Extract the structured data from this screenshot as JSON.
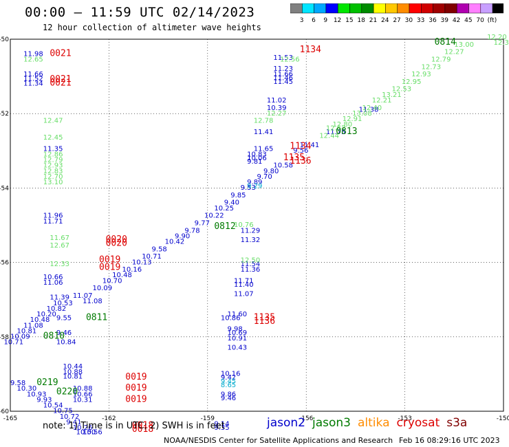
{
  "header": {
    "title": "00:00 – 11:59 UTC 02/14/2023",
    "subtitle": "12 hour collection of altimeter wave heights"
  },
  "colorbar": {
    "colors": [
      "#808080",
      "#00e5ff",
      "#00a8ff",
      "#0000ff",
      "#00e600",
      "#00c000",
      "#008c00",
      "#ffff00",
      "#ffc800",
      "#ff8c00",
      "#ff0000",
      "#d00000",
      "#a00000",
      "#800000",
      "#b000b0",
      "#ff80ff",
      "#c8a0ff",
      "#000000"
    ],
    "labels": [
      "3",
      "6",
      "9",
      "12",
      "15",
      "18",
      "21",
      "24",
      "27",
      "30",
      "33",
      "36",
      "39",
      "42",
      "45",
      "70",
      "(ft)"
    ]
  },
  "notes": {
    "note_text": "note:  1) Time is in UTC;  2) SWH is in feet",
    "credit": "NOAA/NESDIS Center for Satellite Applications and Research",
    "timestamp": "Feb 16 08:29:16 UTC 2023"
  },
  "legend": [
    {
      "name": "jason2",
      "color": "#0000cc"
    },
    {
      "name": "jason3",
      "color": "#007a00"
    },
    {
      "name": "altika",
      "color": "#ff8c00"
    },
    {
      "name": "cryosat",
      "color": "#dd0000"
    },
    {
      "name": "s3a",
      "color": "#800000"
    }
  ],
  "chart_data": {
    "type": "scatter",
    "title": "00:00 – 11:59 UTC 02/14/2023",
    "xlim": [
      -165,
      -150
    ],
    "ylim": [
      -60,
      -50
    ],
    "xticks": [
      "-165",
      "-162",
      "-159",
      "-156",
      "-153",
      "-150"
    ],
    "yticks": [
      "-50",
      "-52",
      "-54",
      "-56",
      "-58",
      "-60"
    ],
    "grid": "dotted",
    "colors": {
      "c12": "#0000cc",
      "c13": "#66dd66",
      "c14": "#00aacc",
      "time_red": "#dd0000",
      "time_green": "#007a00"
    },
    "series": [
      {
        "kind": "text",
        "color": "c12",
        "points": [
          [
            -164.6,
            -50.45,
            "11.98"
          ],
          [
            -164.6,
            -51.0,
            "11.66"
          ],
          [
            -164.6,
            -51.12,
            "11.52"
          ],
          [
            -164.6,
            -51.25,
            "11.34"
          ],
          [
            -164.0,
            -53.0,
            "11.35"
          ],
          [
            -164.0,
            -54.8,
            "11.96"
          ],
          [
            -164.0,
            -54.95,
            "11.71"
          ],
          [
            -164.0,
            -56.45,
            "10.66"
          ],
          [
            -164.0,
            -56.6,
            "11.06"
          ],
          [
            -163.8,
            -57.0,
            "11.39"
          ],
          [
            -163.7,
            -57.15,
            "10.53"
          ],
          [
            -163.9,
            -57.3,
            "10.82"
          ],
          [
            -164.2,
            -57.45,
            "10.20"
          ],
          [
            -164.4,
            -57.6,
            "10.48"
          ],
          [
            -164.6,
            -57.75,
            "11.08"
          ],
          [
            -164.8,
            -57.9,
            "10.81"
          ],
          [
            -165.0,
            -58.05,
            "10.09"
          ],
          [
            -165.2,
            -58.2,
            "10.71"
          ],
          [
            -163.6,
            -57.55,
            "9.55"
          ],
          [
            -163.6,
            -57.95,
            "9.46"
          ],
          [
            -163.6,
            -58.2,
            "10.84"
          ],
          [
            -163.4,
            -58.85,
            "10.44"
          ],
          [
            -163.4,
            -59.0,
            "10.88"
          ],
          [
            -163.4,
            -59.12,
            "10.81"
          ],
          [
            -165.0,
            -59.3,
            "9.58"
          ],
          [
            -164.8,
            -59.45,
            "10.30"
          ],
          [
            -164.5,
            -59.6,
            "10.93"
          ],
          [
            -164.2,
            -59.75,
            "9.93"
          ],
          [
            -164.0,
            -59.9,
            "10.54"
          ],
          [
            -163.7,
            -60.05,
            "10.75"
          ],
          [
            -163.5,
            -60.2,
            "10.72"
          ],
          [
            -163.3,
            -60.35,
            "9.41"
          ],
          [
            -163.1,
            -60.5,
            "10.26"
          ],
          [
            -163.0,
            -60.62,
            "10.50"
          ],
          [
            -162.8,
            -60.62,
            "10.56"
          ],
          [
            -163.1,
            -59.45,
            "10.88"
          ],
          [
            -163.1,
            -59.6,
            "10.66"
          ],
          [
            -163.1,
            -59.75,
            "10.31"
          ],
          [
            -163.1,
            -56.95,
            "11.07"
          ],
          [
            -162.8,
            -57.1,
            "11.08"
          ],
          [
            -162.5,
            -56.75,
            "10.09"
          ],
          [
            -162.2,
            -56.55,
            "10.70"
          ],
          [
            -161.9,
            -56.4,
            "10.48"
          ],
          [
            -161.6,
            -56.25,
            "10.16"
          ],
          [
            -161.3,
            -56.05,
            "10.13"
          ],
          [
            -161.0,
            -55.9,
            "10.71"
          ],
          [
            -160.7,
            -55.7,
            "9.58"
          ],
          [
            -160.3,
            -55.5,
            "10.42"
          ],
          [
            -160.0,
            -55.35,
            "9.90"
          ],
          [
            -159.7,
            -55.2,
            "9.78"
          ],
          [
            -159.4,
            -55.0,
            "9.77"
          ],
          [
            -159.1,
            -54.8,
            "10.22"
          ],
          [
            -158.8,
            -54.6,
            "10.25"
          ],
          [
            -158.5,
            -54.45,
            "9.40"
          ],
          [
            -158.3,
            -54.25,
            "9.85"
          ],
          [
            -158.0,
            -54.05,
            "9.53"
          ],
          [
            -157.8,
            -53.9,
            "9.89"
          ],
          [
            -157.5,
            -53.75,
            "9.70"
          ],
          [
            -157.3,
            -53.6,
            "9.80"
          ],
          [
            -157.0,
            -53.45,
            "10.58"
          ],
          [
            -157.8,
            -53.35,
            "9.81"
          ],
          [
            -157.8,
            -53.15,
            "10.83"
          ],
          [
            -157.8,
            -53.25,
            "10.06"
          ],
          [
            -157.6,
            -53.0,
            "11.65"
          ],
          [
            -157.6,
            -52.55,
            "11.41"
          ],
          [
            -157.2,
            -51.9,
            "10.39"
          ],
          [
            -157.2,
            -51.7,
            "11.02"
          ],
          [
            -157.0,
            -51.2,
            "11.45"
          ],
          [
            -157.0,
            -51.1,
            "11.46"
          ],
          [
            -157.0,
            -51.0,
            "11.66"
          ],
          [
            -157.0,
            -50.85,
            "11.23"
          ],
          [
            -157.0,
            -50.55,
            "11.53"
          ],
          [
            -158.0,
            -55.2,
            "11.29"
          ],
          [
            -158.0,
            -55.45,
            "11.32"
          ],
          [
            -158.0,
            -56.25,
            "11.36"
          ],
          [
            -158.0,
            -56.1,
            "11.54"
          ],
          [
            -158.2,
            -56.65,
            "11.40"
          ],
          [
            -158.2,
            -56.55,
            "11.71"
          ],
          [
            -158.2,
            -56.9,
            "11.07"
          ],
          [
            -158.4,
            -58.1,
            "10.91"
          ],
          [
            -158.4,
            -58.35,
            "10.43"
          ],
          [
            -158.6,
            -57.55,
            "10.86"
          ],
          [
            -158.4,
            -57.45,
            "11.60"
          ],
          [
            -158.4,
            -57.95,
            "10.69"
          ],
          [
            -158.4,
            -57.85,
            "9.98"
          ],
          [
            -158.6,
            -59.05,
            "10.16"
          ],
          [
            -158.6,
            -59.15,
            "9.42"
          ],
          [
            -158.6,
            -59.6,
            "9.86"
          ],
          [
            -158.6,
            -59.7,
            "9.46"
          ],
          [
            -158.8,
            -60.4,
            "9.14"
          ],
          [
            -158.8,
            -60.5,
            "9.35"
          ],
          [
            -155.4,
            -52.55,
            "11.75"
          ],
          [
            -154.4,
            -51.95,
            "11.38"
          ],
          [
            -156.2,
            -52.9,
            "11.41"
          ],
          [
            -156.4,
            -53.05,
            "9.56"
          ]
        ]
      },
      {
        "kind": "text",
        "color": "c13",
        "points": [
          [
            -164.6,
            -50.6,
            "12.65"
          ],
          [
            -164.0,
            -52.25,
            "12.47"
          ],
          [
            -164.0,
            -52.7,
            "12.45"
          ],
          [
            -164.0,
            -53.15,
            "12.86"
          ],
          [
            -164.0,
            -53.3,
            "12.79"
          ],
          [
            -164.0,
            -53.45,
            "12.93"
          ],
          [
            -164.0,
            -53.6,
            "12.83"
          ],
          [
            -164.0,
            -53.75,
            "12.70"
          ],
          [
            -164.0,
            -53.9,
            "13.10"
          ],
          [
            -163.8,
            -55.4,
            "11.67"
          ],
          [
            -163.8,
            -55.6,
            "12.67"
          ],
          [
            -163.8,
            -56.1,
            "12.33"
          ],
          [
            -157.2,
            -52.05,
            "12.27"
          ],
          [
            -157.6,
            -52.25,
            "12.78"
          ],
          [
            -158.0,
            -56.0,
            "12.50"
          ],
          [
            -156.8,
            -50.6,
            "12.56"
          ],
          [
            -155.6,
            -52.65,
            "12.44"
          ],
          [
            -155.4,
            -52.45,
            "12.67"
          ],
          [
            -155.2,
            -52.35,
            "12.80"
          ],
          [
            -154.9,
            -52.2,
            "12.91"
          ],
          [
            -154.6,
            -52.05,
            "13.08"
          ],
          [
            -154.3,
            -51.9,
            "12.40"
          ],
          [
            -154.0,
            -51.7,
            "12.21"
          ],
          [
            -153.7,
            -51.55,
            "13.21"
          ],
          [
            -153.4,
            -51.4,
            "12.53"
          ],
          [
            -153.1,
            -51.2,
            "12.95"
          ],
          [
            -152.8,
            -51.0,
            "12.93"
          ],
          [
            -152.5,
            -50.8,
            "12.73"
          ],
          [
            -152.2,
            -50.6,
            "12.79"
          ],
          [
            -151.8,
            -50.4,
            "12.27"
          ],
          [
            -151.5,
            -50.2,
            "13.00"
          ],
          [
            -150.5,
            -50.0,
            "12.20"
          ],
          [
            -150.3,
            -50.15,
            "12.30"
          ],
          [
            -158.2,
            -55.05,
            "10.76"
          ]
        ]
      },
      {
        "kind": "text",
        "color": "c14",
        "points": [
          [
            -158.6,
            -59.25,
            "9.45"
          ],
          [
            -158.6,
            -59.35,
            "8.65"
          ],
          [
            -157.8,
            -54.0,
            "9.29"
          ]
        ]
      },
      {
        "kind": "time",
        "color": "time_red",
        "points": [
          [
            -163.8,
            -50.45,
            "0021"
          ],
          [
            -163.8,
            -51.15,
            "0021"
          ],
          [
            -163.8,
            -51.25,
            "0021"
          ],
          [
            -162.1,
            -55.45,
            "0020"
          ],
          [
            -162.1,
            -55.55,
            "0020"
          ],
          [
            -162.3,
            -56.0,
            "0019"
          ],
          [
            -162.3,
            -56.2,
            "0019"
          ],
          [
            -161.5,
            -59.15,
            "0019"
          ],
          [
            -161.5,
            -59.45,
            "0019"
          ],
          [
            -161.5,
            -59.75,
            "0019"
          ],
          [
            -161.3,
            -60.45,
            "0018"
          ],
          [
            -161.3,
            -60.55,
            "0018"
          ],
          [
            -156.2,
            -50.35,
            "1134"
          ],
          [
            -156.5,
            -52.95,
            "1134"
          ],
          [
            -156.7,
            -53.25,
            "1135"
          ],
          [
            -156.5,
            -53.35,
            "1136"
          ],
          [
            -157.6,
            -57.55,
            "1135"
          ],
          [
            -157.6,
            -57.65,
            "1136"
          ]
        ]
      },
      {
        "kind": "time",
        "color": "time_green",
        "points": [
          [
            -164.0,
            -58.05,
            "0810"
          ],
          [
            -162.7,
            -57.55,
            "0811"
          ],
          [
            -158.8,
            -55.1,
            "0812"
          ],
          [
            -155.1,
            -52.55,
            "0813"
          ],
          [
            -152.1,
            -50.15,
            "0814"
          ],
          [
            -164.2,
            -59.3,
            "0219"
          ],
          [
            -163.6,
            -59.55,
            "0220"
          ]
        ]
      }
    ]
  }
}
